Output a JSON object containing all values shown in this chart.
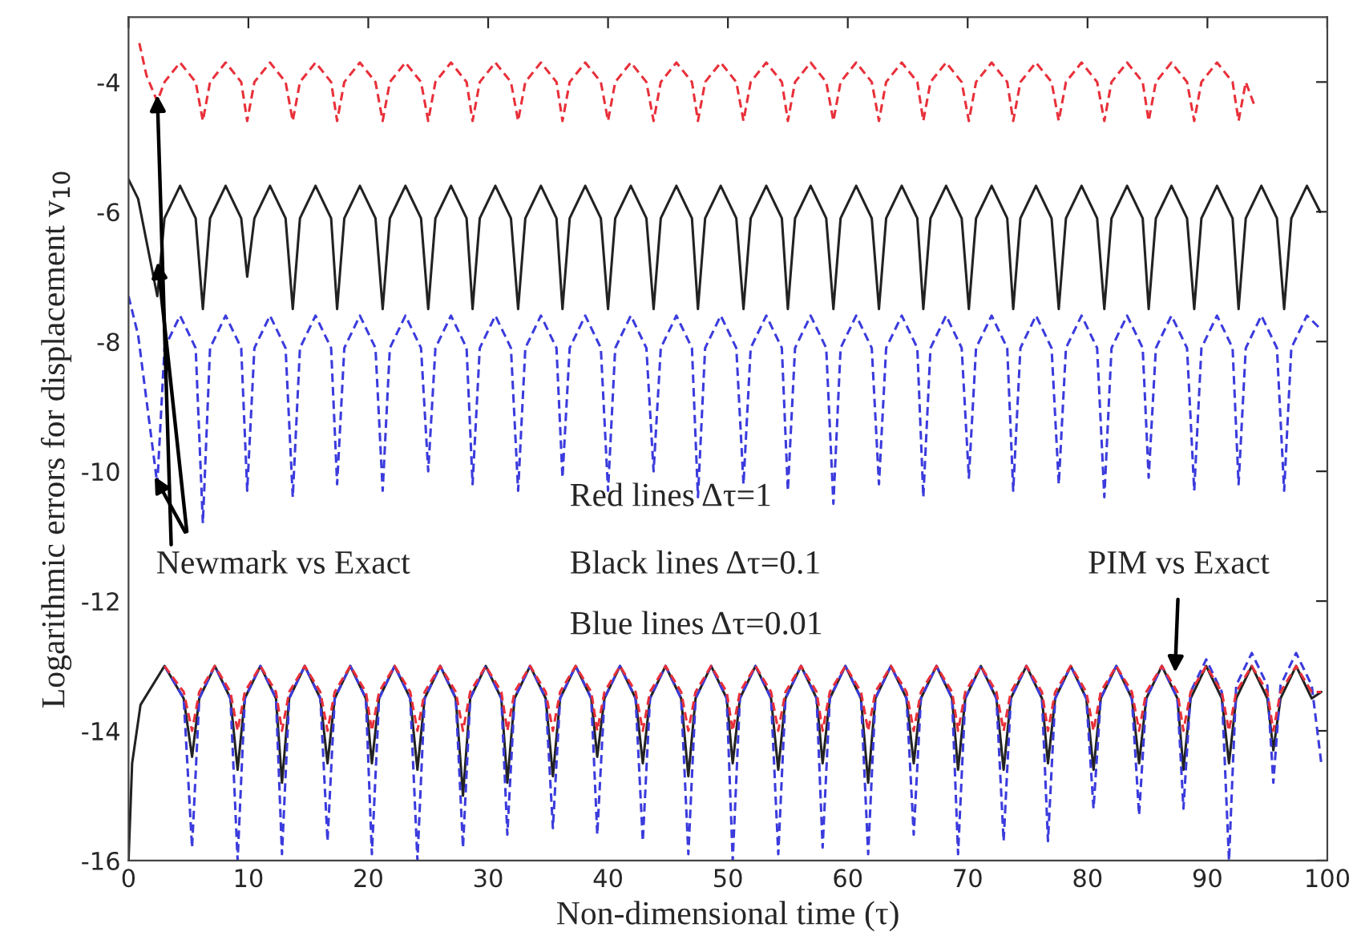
{
  "chart_data": {
    "type": "line",
    "xlabel": "Non-dimensional time (τ)",
    "ylabel": "Logarithmic errors for displacement v$_{10}$",
    "xlim": [
      0,
      100
    ],
    "xticks": [
      0,
      10,
      20,
      30,
      40,
      50,
      60,
      70,
      80,
      90,
      100
    ],
    "ylim": [
      -16,
      -3
    ],
    "yticks": [
      -16,
      -14,
      -12,
      -10,
      -8,
      -6,
      -4
    ],
    "grid": false,
    "legend": false,
    "annotations": [
      {
        "text": "Newmark vs Exact",
        "x": 2.4,
        "y": -4.2
      },
      "Red lines Δτ=1",
      "Black lines Δτ=0.1",
      "Blue lines Δτ=0.01",
      {
        "text": "PIM vs Exact",
        "x": 87.3,
        "y": -13.1
      }
    ],
    "series": [
      {
        "color": "#e8303a",
        "line_style": "dashed",
        "x": [
          0.9,
          1.5,
          2.4,
          3.0,
          4.3,
          5.6,
          6.2,
          6.8,
          8.1,
          9.4,
          9.9,
          10.5,
          11.8,
          13.1,
          13.7,
          14.3,
          15.6,
          16.9,
          17.4,
          18.0,
          19.3,
          20.6,
          21.2,
          21.8,
          23.1,
          24.4,
          25.0,
          25.6,
          26.9,
          28.2,
          28.7,
          29.3,
          30.6,
          31.9,
          32.5,
          33.1,
          34.4,
          35.7,
          36.2,
          36.8,
          38.1,
          39.4,
          40.0,
          40.6,
          41.9,
          43.2,
          43.8,
          44.4,
          45.7,
          47.0,
          47.5,
          48.1,
          49.4,
          50.7,
          51.3,
          51.9,
          53.2,
          54.5,
          55.0,
          55.6,
          56.9,
          58.2,
          58.8,
          59.4,
          60.7,
          62.0,
          62.6,
          63.2,
          64.5,
          65.8,
          66.3,
          66.9,
          68.2,
          69.5,
          70.1,
          70.7,
          72.0,
          73.3,
          73.8,
          74.4,
          75.7,
          77.0,
          77.6,
          78.2,
          79.5,
          80.8,
          81.4,
          82.0,
          83.3,
          84.6,
          85.1,
          85.7,
          87.0,
          88.3,
          88.9,
          89.5,
          90.8,
          92.1,
          92.6,
          93.2,
          94.0
        ],
        "values": [
          -3.4,
          -3.9,
          -4.3,
          -4.0,
          -3.7,
          -4.0,
          -4.6,
          -4.0,
          -3.7,
          -4.0,
          -4.6,
          -4.0,
          -3.7,
          -4.0,
          -4.6,
          -4.0,
          -3.7,
          -4.0,
          -4.6,
          -4.0,
          -3.7,
          -4.0,
          -4.6,
          -4.0,
          -3.7,
          -4.0,
          -4.6,
          -4.0,
          -3.7,
          -4.0,
          -4.6,
          -4.0,
          -3.7,
          -4.0,
          -4.6,
          -4.0,
          -3.7,
          -4.0,
          -4.6,
          -4.0,
          -3.7,
          -4.0,
          -4.6,
          -4.0,
          -3.7,
          -4.0,
          -4.6,
          -4.0,
          -3.7,
          -4.0,
          -4.6,
          -4.0,
          -3.7,
          -4.0,
          -4.6,
          -4.0,
          -3.7,
          -4.0,
          -4.6,
          -4.0,
          -3.7,
          -4.0,
          -4.6,
          -4.0,
          -3.7,
          -4.0,
          -4.6,
          -4.0,
          -3.7,
          -4.0,
          -4.6,
          -4.0,
          -3.7,
          -4.0,
          -4.6,
          -4.0,
          -3.7,
          -4.0,
          -4.6,
          -4.0,
          -3.7,
          -4.0,
          -4.6,
          -4.0,
          -3.7,
          -4.0,
          -4.6,
          -4.0,
          -3.7,
          -4.0,
          -4.6,
          -4.0,
          -3.7,
          -4.0,
          -4.6,
          -4.0,
          -3.7,
          -4.0,
          -4.6,
          -4.0,
          -4.4
        ]
      },
      {
        "color": "#222222",
        "line_style": "solid",
        "x": [
          0,
          0.8,
          2.4,
          3.0,
          4.3,
          5.6,
          6.2,
          6.8,
          8.1,
          9.4,
          9.9,
          10.5,
          11.8,
          13.1,
          13.7,
          14.3,
          15.6,
          16.9,
          17.4,
          18.0,
          19.3,
          20.6,
          21.2,
          21.8,
          23.1,
          24.4,
          25.0,
          25.6,
          26.9,
          28.2,
          28.7,
          29.3,
          30.6,
          31.9,
          32.5,
          33.1,
          34.4,
          35.7,
          36.2,
          36.8,
          38.1,
          39.4,
          40.0,
          40.6,
          41.9,
          43.2,
          43.8,
          44.4,
          45.7,
          47.0,
          47.5,
          48.1,
          49.4,
          50.7,
          51.3,
          51.9,
          53.2,
          54.5,
          55.0,
          55.6,
          56.9,
          58.2,
          58.8,
          59.4,
          60.7,
          62.0,
          62.6,
          63.2,
          64.5,
          65.8,
          66.3,
          66.9,
          68.2,
          69.5,
          70.1,
          70.7,
          72.0,
          73.3,
          73.8,
          74.4,
          75.7,
          77.0,
          77.6,
          78.2,
          79.5,
          80.8,
          81.4,
          82.0,
          83.3,
          84.6,
          85.1,
          85.7,
          87.0,
          88.3,
          88.9,
          89.5,
          90.8,
          92.1,
          92.6,
          93.2,
          94.5,
          95.8,
          96.4,
          97.0,
          98.3,
          99.4
        ],
        "values": [
          -5.5,
          -5.8,
          -7.3,
          -6.1,
          -5.6,
          -6.1,
          -7.5,
          -6.1,
          -5.6,
          -6.1,
          -7.0,
          -6.1,
          -5.6,
          -6.1,
          -7.5,
          -6.1,
          -5.6,
          -6.1,
          -7.5,
          -6.1,
          -5.6,
          -6.1,
          -7.5,
          -6.1,
          -5.6,
          -6.1,
          -7.5,
          -6.1,
          -5.6,
          -6.1,
          -7.5,
          -6.1,
          -5.6,
          -6.1,
          -7.5,
          -6.1,
          -5.6,
          -6.1,
          -7.5,
          -6.1,
          -5.6,
          -6.1,
          -7.5,
          -6.1,
          -5.6,
          -6.1,
          -7.5,
          -6.1,
          -5.6,
          -6.1,
          -7.5,
          -6.1,
          -5.6,
          -6.1,
          -7.5,
          -6.1,
          -5.6,
          -6.1,
          -7.5,
          -6.1,
          -5.6,
          -6.1,
          -7.5,
          -6.1,
          -5.6,
          -6.1,
          -7.5,
          -6.1,
          -5.6,
          -6.1,
          -7.5,
          -6.1,
          -5.6,
          -6.1,
          -7.5,
          -6.1,
          -5.6,
          -6.1,
          -7.5,
          -6.1,
          -5.6,
          -6.1,
          -7.5,
          -6.1,
          -5.6,
          -6.1,
          -7.5,
          -6.1,
          -5.6,
          -6.1,
          -7.5,
          -6.1,
          -5.6,
          -6.1,
          -7.5,
          -6.1,
          -5.6,
          -6.1,
          -7.5,
          -6.1,
          -5.6,
          -6.1,
          -7.5,
          -6.1,
          -5.6,
          -6.0
        ]
      },
      {
        "color": "#3b3bdd",
        "line_style": "dashed",
        "x": [
          0,
          0.8,
          2.4,
          3.0,
          4.3,
          5.6,
          6.2,
          6.8,
          8.1,
          9.4,
          9.9,
          10.5,
          11.8,
          13.1,
          13.7,
          14.3,
          15.6,
          16.9,
          17.4,
          18.0,
          19.3,
          20.6,
          21.2,
          21.8,
          23.1,
          24.4,
          25.0,
          25.6,
          26.9,
          28.2,
          28.7,
          29.3,
          30.6,
          31.9,
          32.5,
          33.1,
          34.4,
          35.7,
          36.2,
          36.8,
          38.1,
          39.4,
          40.0,
          40.6,
          41.9,
          43.2,
          43.8,
          44.4,
          45.7,
          47.0,
          47.5,
          48.1,
          49.4,
          50.7,
          51.3,
          51.9,
          53.2,
          54.5,
          55.0,
          55.6,
          56.9,
          58.2,
          58.8,
          59.4,
          60.7,
          62.0,
          62.6,
          63.2,
          64.5,
          65.8,
          66.3,
          66.9,
          68.2,
          69.5,
          70.1,
          70.7,
          72.0,
          73.3,
          73.8,
          74.4,
          75.7,
          77.0,
          77.6,
          78.2,
          79.5,
          80.8,
          81.4,
          82.0,
          83.3,
          84.6,
          85.1,
          85.7,
          87.0,
          88.3,
          88.9,
          89.5,
          90.8,
          92.1,
          92.6,
          93.2,
          94.5,
          95.8,
          96.4,
          97.0,
          98.3,
          99.4
        ],
        "values": [
          -7.3,
          -7.9,
          -10.2,
          -8.1,
          -7.6,
          -8.1,
          -10.8,
          -8.1,
          -7.6,
          -8.1,
          -10.3,
          -8.1,
          -7.6,
          -8.1,
          -10.4,
          -8.1,
          -7.6,
          -8.1,
          -10.2,
          -8.1,
          -7.6,
          -8.1,
          -10.3,
          -8.1,
          -7.6,
          -8.1,
          -10.0,
          -8.1,
          -7.6,
          -8.1,
          -10.2,
          -8.1,
          -7.6,
          -8.1,
          -10.3,
          -8.1,
          -7.6,
          -8.1,
          -10.1,
          -8.1,
          -7.6,
          -8.1,
          -10.3,
          -8.1,
          -7.6,
          -8.1,
          -10.0,
          -8.1,
          -7.6,
          -8.1,
          -10.4,
          -8.1,
          -7.6,
          -8.1,
          -10.2,
          -8.1,
          -7.6,
          -8.1,
          -10.3,
          -8.1,
          -7.6,
          -8.1,
          -10.5,
          -8.1,
          -7.6,
          -8.1,
          -10.2,
          -8.1,
          -7.6,
          -8.1,
          -10.4,
          -8.1,
          -7.6,
          -8.1,
          -10.1,
          -8.1,
          -7.6,
          -8.1,
          -10.3,
          -8.1,
          -7.6,
          -8.1,
          -10.2,
          -8.1,
          -7.6,
          -8.1,
          -10.4,
          -8.1,
          -7.6,
          -8.1,
          -10.1,
          -8.1,
          -7.6,
          -8.1,
          -10.3,
          -8.1,
          -7.6,
          -8.1,
          -10.2,
          -8.1,
          -7.6,
          -8.1,
          -10.3,
          -8.1,
          -7.6,
          -7.8
        ]
      },
      {
        "color": "#3b3bdd",
        "line_style": "dashed",
        "x": [
          3.0,
          4.6,
          5.3,
          5.9,
          7.2,
          8.5,
          9.1,
          9.7,
          11.0,
          12.3,
          12.8,
          13.4,
          14.7,
          16.0,
          16.6,
          17.2,
          18.5,
          19.8,
          20.3,
          20.9,
          22.2,
          23.5,
          24.1,
          24.7,
          26.0,
          27.3,
          27.9,
          28.5,
          29.8,
          31.1,
          31.6,
          32.2,
          33.5,
          34.8,
          35.4,
          36.0,
          37.3,
          38.6,
          39.1,
          39.7,
          41.0,
          42.3,
          42.9,
          43.5,
          44.8,
          46.1,
          46.7,
          47.3,
          48.6,
          49.9,
          50.4,
          51.0,
          52.3,
          53.6,
          54.2,
          54.8,
          56.1,
          57.4,
          57.9,
          58.5,
          59.8,
          61.1,
          61.7,
          62.3,
          63.6,
          64.9,
          65.5,
          66.1,
          67.4,
          68.7,
          69.2,
          69.8,
          71.1,
          72.4,
          73.0,
          73.6,
          74.9,
          76.2,
          76.7,
          77.3,
          78.6,
          79.9,
          80.5,
          81.1,
          82.4,
          83.7,
          84.3,
          84.9,
          86.2,
          87.5,
          88.0,
          88.6,
          89.9,
          91.2,
          91.8,
          92.4,
          93.7,
          95.0,
          95.5,
          96.1,
          97.4,
          98.7,
          99.5
        ],
        "values": [
          -13.0,
          -13.5,
          -15.8,
          -13.5,
          -13.0,
          -13.5,
          -16,
          -13.5,
          -13.0,
          -13.5,
          -15.9,
          -13.5,
          -13.0,
          -13.5,
          -15.7,
          -13.5,
          -13.0,
          -13.5,
          -15.9,
          -13.5,
          -13.0,
          -13.5,
          -16,
          -13.5,
          -13.0,
          -13.5,
          -15.8,
          -13.5,
          -13.0,
          -13.5,
          -15.6,
          -13.5,
          -13.0,
          -13.5,
          -15.5,
          -13.5,
          -13.0,
          -13.5,
          -15.6,
          -13.5,
          -13.0,
          -13.5,
          -15.7,
          -13.5,
          -13.0,
          -13.5,
          -15.9,
          -13.5,
          -13.0,
          -13.5,
          -16,
          -13.5,
          -13.0,
          -13.5,
          -15.9,
          -13.5,
          -13.0,
          -13.5,
          -15.8,
          -13.5,
          -13.0,
          -13.5,
          -15.9,
          -13.5,
          -13.0,
          -13.5,
          -15.6,
          -13.5,
          -13.0,
          -13.5,
          -15.9,
          -13.5,
          -13.0,
          -13.5,
          -15.7,
          -13.5,
          -13.0,
          -13.5,
          -15.7,
          -13.5,
          -13.0,
          -13.5,
          -15.2,
          -13.5,
          -13.0,
          -13.5,
          -15.3,
          -13.5,
          -13.0,
          -13.5,
          -15.2,
          -13.4,
          -12.9,
          -13.4,
          -16,
          -13.3,
          -12.8,
          -13.3,
          -14.8,
          -13.3,
          -12.8,
          -13.3,
          -14.5
        ]
      },
      {
        "color": "#e8303a",
        "line_style": "dashed",
        "x": [
          3.0,
          4.6,
          5.3,
          5.9,
          7.2,
          8.5,
          9.1,
          9.7,
          11.0,
          12.3,
          12.8,
          13.4,
          14.7,
          16.0,
          16.6,
          17.2,
          18.5,
          19.8,
          20.3,
          20.9,
          22.2,
          23.5,
          24.1,
          24.7,
          26.0,
          27.3,
          27.9,
          28.5,
          29.8,
          31.1,
          31.6,
          32.2,
          33.5,
          34.8,
          35.4,
          36.0,
          37.3,
          38.6,
          39.1,
          39.7,
          41.0,
          42.3,
          42.9,
          43.5,
          44.8,
          46.1,
          46.7,
          47.3,
          48.6,
          49.9,
          50.4,
          51.0,
          52.3,
          53.6,
          54.2,
          54.8,
          56.1,
          57.4,
          57.9,
          58.5,
          59.8,
          61.1,
          61.7,
          62.3,
          63.6,
          64.9,
          65.5,
          66.1,
          67.4,
          68.7,
          69.2,
          69.8,
          71.1,
          72.4,
          73.0,
          73.6,
          74.9,
          76.2,
          76.7,
          77.3,
          78.6,
          79.9,
          80.5,
          81.1,
          82.4,
          83.7,
          84.3,
          84.9,
          86.2,
          87.5,
          88.0,
          88.6,
          89.9,
          91.2,
          91.8,
          92.4,
          93.7,
          95.0,
          95.5,
          96.1,
          97.4,
          98.7,
          99.5
        ],
        "values": [
          -13.0,
          -13.4,
          -14.0,
          -13.4,
          -13.0,
          -13.4,
          -14.0,
          -13.4,
          -13.0,
          -13.4,
          -14.0,
          -13.4,
          -13.0,
          -13.4,
          -14.0,
          -13.4,
          -13.0,
          -13.4,
          -14.0,
          -13.4,
          -13.0,
          -13.4,
          -14.0,
          -13.4,
          -13.0,
          -13.4,
          -14.0,
          -13.4,
          -13.0,
          -13.4,
          -14.0,
          -13.4,
          -13.0,
          -13.4,
          -14.0,
          -13.4,
          -13.0,
          -13.4,
          -14.0,
          -13.4,
          -13.0,
          -13.4,
          -14.0,
          -13.4,
          -13.0,
          -13.4,
          -14.0,
          -13.4,
          -13.0,
          -13.4,
          -14.0,
          -13.4,
          -13.0,
          -13.4,
          -14.0,
          -13.4,
          -13.0,
          -13.4,
          -14.0,
          -13.4,
          -13.0,
          -13.4,
          -14.0,
          -13.4,
          -13.0,
          -13.4,
          -14.0,
          -13.4,
          -13.0,
          -13.4,
          -14.0,
          -13.4,
          -13.0,
          -13.4,
          -14.0,
          -13.4,
          -13.0,
          -13.4,
          -14.0,
          -13.4,
          -13.0,
          -13.4,
          -14.0,
          -13.4,
          -13.0,
          -13.4,
          -14.0,
          -13.4,
          -13.0,
          -13.4,
          -14.0,
          -13.4,
          -13.0,
          -13.4,
          -14.0,
          -13.4,
          -13.0,
          -13.4,
          -14.0,
          -13.4,
          -13.0,
          -13.4,
          -13.4
        ]
      },
      {
        "color": "#222222",
        "line_style": "solid",
        "x": [
          0,
          0.3,
          1.0,
          3.0,
          4.6,
          5.3,
          5.9,
          7.2,
          8.5,
          9.1,
          9.7,
          11.0,
          12.3,
          12.8,
          13.4,
          14.7,
          16.0,
          16.6,
          17.2,
          18.5,
          19.8,
          20.3,
          20.9,
          22.2,
          23.5,
          24.1,
          24.7,
          26.0,
          27.3,
          27.9,
          28.5,
          29.8,
          31.1,
          31.6,
          32.2,
          33.5,
          34.8,
          35.4,
          36.0,
          37.3,
          38.6,
          39.1,
          39.7,
          41.0,
          42.3,
          42.9,
          43.5,
          44.8,
          46.1,
          46.7,
          47.3,
          48.6,
          49.9,
          50.4,
          51.0,
          52.3,
          53.6,
          54.2,
          54.8,
          56.1,
          57.4,
          57.9,
          58.5,
          59.8,
          61.1,
          61.7,
          62.3,
          63.6,
          64.9,
          65.5,
          66.1,
          67.4,
          68.7,
          69.2,
          69.8,
          71.1,
          72.4,
          73.0,
          73.6,
          74.9,
          76.2,
          76.7,
          77.3,
          78.6,
          79.9,
          80.5,
          81.1,
          82.4,
          83.7,
          84.3,
          84.9,
          86.2,
          87.5,
          88.0,
          88.6,
          89.9,
          91.2,
          91.8,
          92.4,
          93.7,
          95.0,
          95.5,
          96.1,
          97.4,
          98.7,
          99.5
        ],
        "values": [
          -16,
          -14.5,
          -13.6,
          -13.0,
          -13.5,
          -14.4,
          -13.5,
          -13.0,
          -13.5,
          -14.6,
          -13.5,
          -13.0,
          -13.5,
          -14.8,
          -13.5,
          -13.0,
          -13.5,
          -14.5,
          -13.5,
          -13.0,
          -13.5,
          -14.5,
          -13.5,
          -13.0,
          -13.5,
          -14.6,
          -13.5,
          -13.0,
          -13.5,
          -15.0,
          -13.5,
          -13.0,
          -13.5,
          -14.8,
          -13.5,
          -13.0,
          -13.5,
          -14.7,
          -13.5,
          -13.0,
          -13.5,
          -14.4,
          -13.5,
          -13.0,
          -13.5,
          -14.5,
          -13.5,
          -13.0,
          -13.5,
          -14.7,
          -13.5,
          -13.0,
          -13.5,
          -14.5,
          -13.5,
          -13.0,
          -13.5,
          -14.6,
          -13.5,
          -13.0,
          -13.5,
          -14.5,
          -13.5,
          -13.0,
          -13.5,
          -14.8,
          -13.5,
          -13.0,
          -13.5,
          -14.5,
          -13.5,
          -13.0,
          -13.5,
          -14.6,
          -13.5,
          -13.0,
          -13.5,
          -14.6,
          -13.5,
          -13.0,
          -13.5,
          -14.5,
          -13.5,
          -13.0,
          -13.5,
          -14.6,
          -13.5,
          -13.0,
          -13.5,
          -14.5,
          -13.5,
          -13.0,
          -13.5,
          -14.6,
          -13.5,
          -13.0,
          -13.5,
          -14.5,
          -13.5,
          -13.0,
          -13.5,
          -14.3,
          -13.5,
          -13.0,
          -13.5,
          -13.4
        ]
      }
    ]
  }
}
